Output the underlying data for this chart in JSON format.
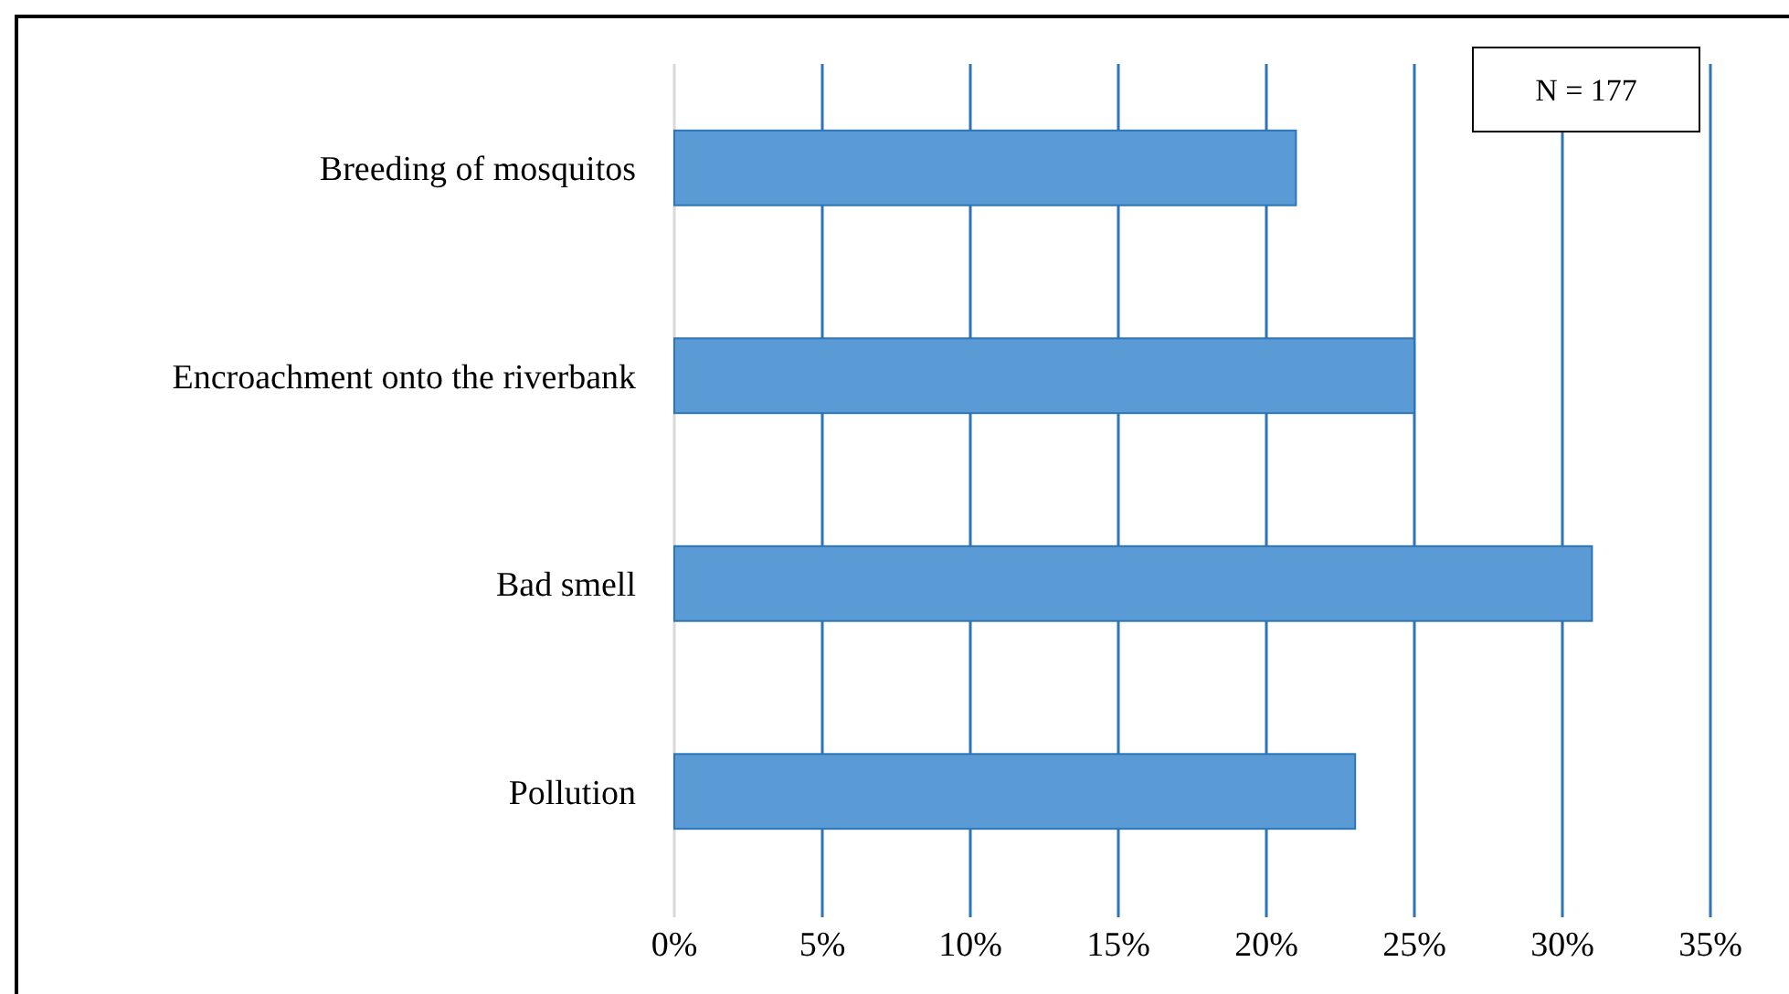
{
  "chart_data": {
    "type": "bar",
    "orientation": "horizontal",
    "categories": [
      "Breeding of mosquitos",
      "Encroachment onto the riverbank",
      "Bad smell",
      "Pollution"
    ],
    "values": [
      21,
      25,
      31,
      23
    ],
    "color": "#5b9bd5",
    "xlim": [
      0,
      35
    ],
    "xticks": [
      {
        "value": 0,
        "label": "0%"
      },
      {
        "value": 5,
        "label": "5%"
      },
      {
        "value": 10,
        "label": "10%"
      },
      {
        "value": 15,
        "label": "15%"
      },
      {
        "value": 20,
        "label": "20%"
      },
      {
        "value": 25,
        "label": "25%"
      },
      {
        "value": 30,
        "label": "30%"
      },
      {
        "value": 35,
        "label": "35%"
      }
    ],
    "grid": "x",
    "annotations": [
      "N = 177"
    ]
  }
}
